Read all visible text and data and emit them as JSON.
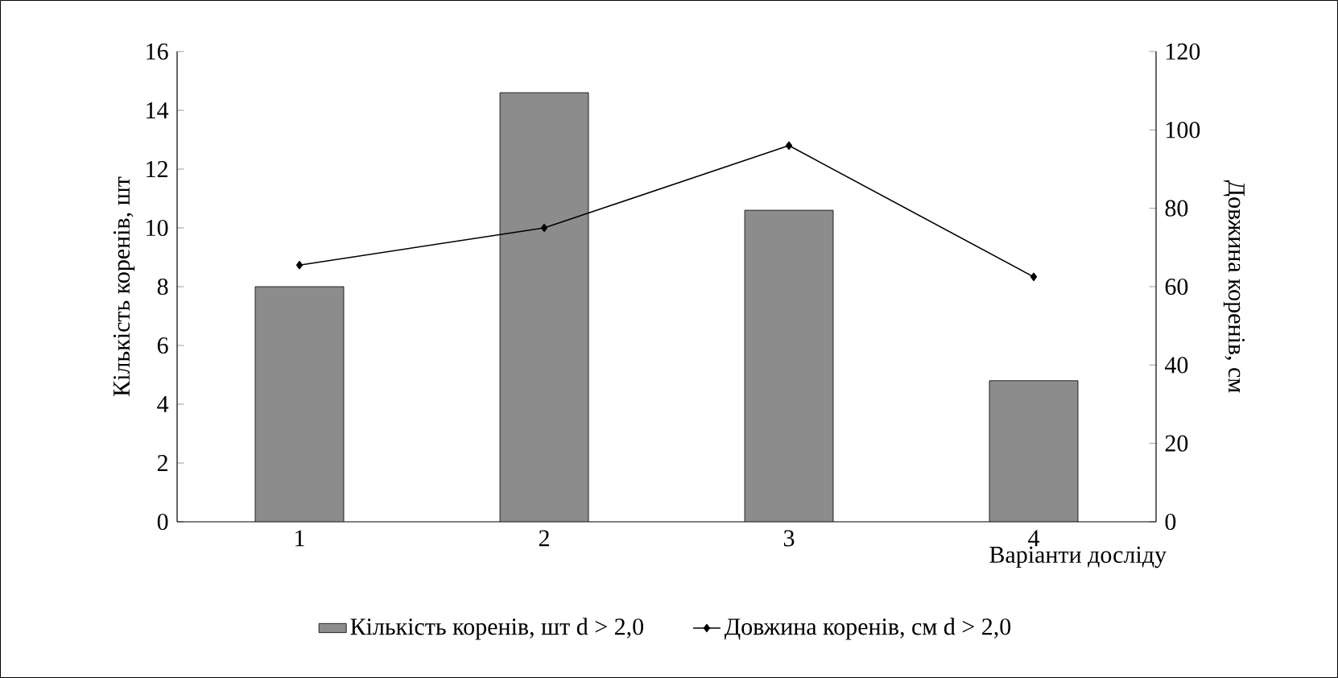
{
  "chart_data": {
    "type": "bar",
    "categories": [
      "1",
      "2",
      "3",
      "4"
    ],
    "xlabel": "Варіанти досліду",
    "ylabel": "Кількість коренів, шт",
    "y2label": "Довжина коренів, см",
    "series": [
      {
        "name": "Кількість коренів, шт d > 2,0",
        "color": "#8c8c8c",
        "values": [
          8.0,
          14.6,
          10.6,
          4.8
        ]
      },
      {
        "name": "Довжина коренів, см d > 2,0",
        "type": "line",
        "axis": "y2",
        "color": "#000000",
        "marker": "diamond",
        "values": [
          65.5,
          75,
          96,
          62.5
        ]
      }
    ],
    "ylim": [
      0,
      16
    ],
    "yticks": [
      0,
      2,
      4,
      6,
      8,
      10,
      12,
      14,
      16
    ],
    "y2lim": [
      0,
      120
    ],
    "y2ticks": [
      0,
      20,
      40,
      60,
      80,
      100,
      120
    ],
    "grid": false,
    "legend": "bottom"
  }
}
